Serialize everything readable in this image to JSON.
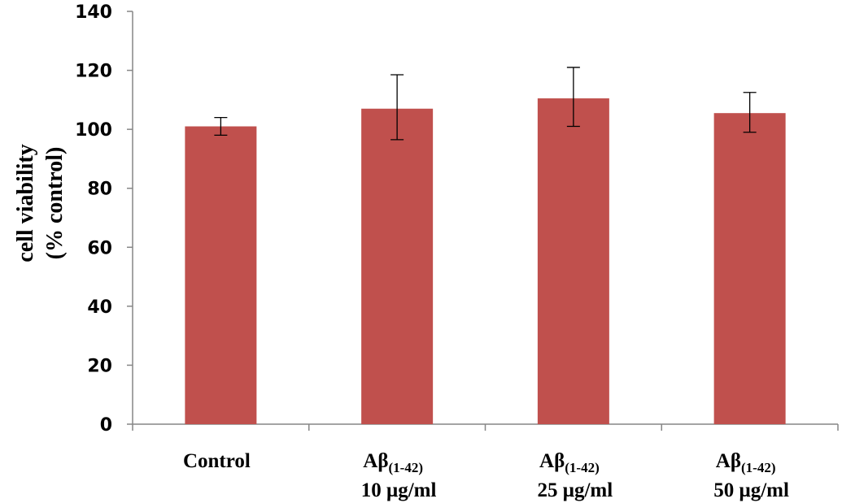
{
  "chart_data": {
    "type": "bar",
    "categories": [
      {
        "main": "Control",
        "sub": "",
        "line2": ""
      },
      {
        "main": "Aβ",
        "sub": "(1-42)",
        "line2": "10 μg/ml"
      },
      {
        "main": "Aβ",
        "sub": "(1-42)",
        "line2": "25 μg/ml"
      },
      {
        "main": "Aβ",
        "sub": "(1-42)",
        "line2": "50 μg/ml"
      }
    ],
    "values": [
      101,
      107,
      110.5,
      105.5
    ],
    "errors": [
      {
        "low": 98,
        "high": 104
      },
      {
        "low": 96.5,
        "high": 118.5
      },
      {
        "low": 101,
        "high": 121
      },
      {
        "low": 99,
        "high": 112.5
      }
    ],
    "ylabel_line1": "cell viability",
    "ylabel_line2": "(% control)",
    "xlabel": "",
    "ylim": [
      0,
      140
    ],
    "yticks": [
      0,
      20,
      40,
      60,
      80,
      100,
      120,
      140
    ],
    "grid": false,
    "bar_color": "#C0504D"
  }
}
